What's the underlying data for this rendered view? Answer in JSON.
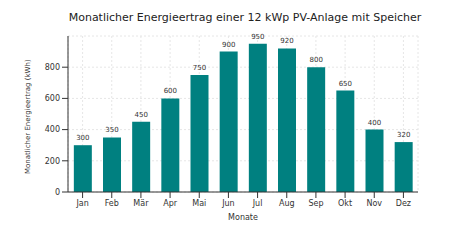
{
  "chart_data": {
    "type": "bar",
    "title": "Monatlicher Energieertrag einer 12 kWp PV-Anlage mit Speicher",
    "x_label": "Monate",
    "y_label": "Monatlicher Energieertrag (kWh)",
    "categories": [
      "Jan",
      "Feb",
      "Mär",
      "Apr",
      "Mai",
      "Jun",
      "Jul",
      "Aug",
      "Sep",
      "Okt",
      "Nov",
      "Dez"
    ],
    "values": [
      300,
      350,
      450,
      600,
      750,
      900,
      950,
      920,
      800,
      650,
      400,
      320
    ],
    "color": "#008080",
    "ylim": [
      0,
      1000
    ],
    "yticks": [
      0,
      200,
      400,
      600,
      800
    ],
    "grid": true,
    "data_labels": true
  }
}
